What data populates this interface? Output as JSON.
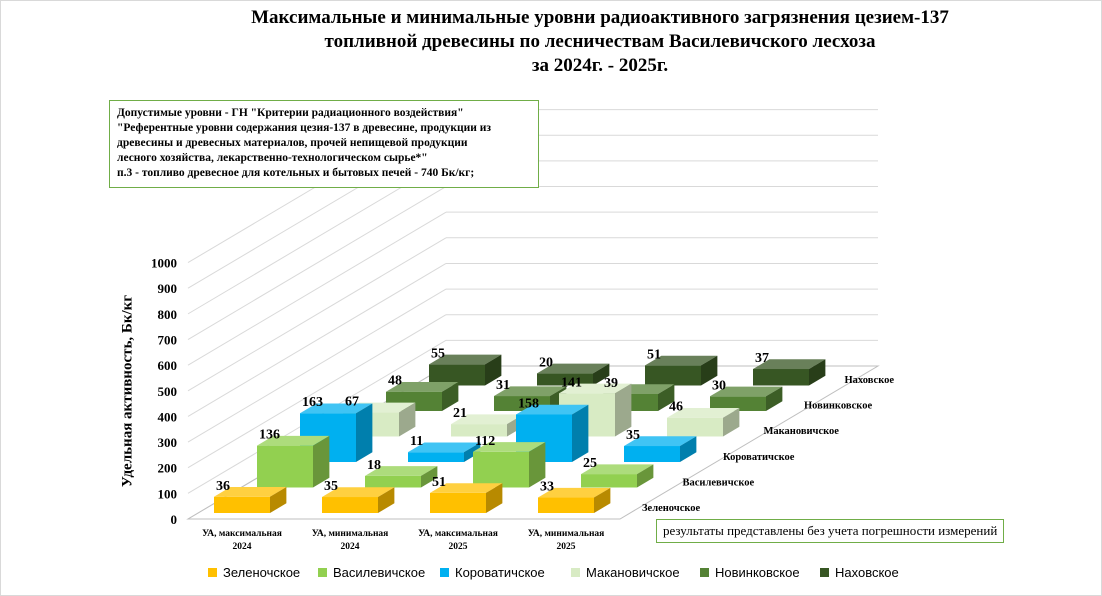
{
  "title_lines": [
    "Максимальные и минимальные уровни радиоактивного загрязнения цезием-137",
    "топливной древесины по лесничествам Василевичского лесхоза",
    "за 2024г. - 2025г."
  ],
  "note_lines": [
    "Допустимые уровни - ГН \"Критерии радиационного воздействия\"",
    "\"Референтные уровни содержания цезия-137 в древесине, продукции из",
    "древесины и древесных материалов, прочей непищевой продукции",
    "лесного хозяйства,  лекарственно-технологическом сырье*\"",
    "п.3 - топливо древесное для котельных и бытовых печей - 740 Бк/кг;"
  ],
  "footnote": "результаты представлены без учета погрешности измерений",
  "chart_data": {
    "type": "bar",
    "subtype": "3d-column",
    "title": "Максимальные и минимальные уровни радиоактивного загрязнения цезием-137 топливной древесины по лесничествам Василевичского лесхоза за 2024г. - 2025г.",
    "ylabel": "Удельная активность, Бк/кг",
    "ylim": [
      0,
      1000
    ],
    "yticks": [
      0,
      100,
      200,
      300,
      400,
      500,
      600,
      700,
      800,
      900,
      1000
    ],
    "categories": [
      [
        "УА, максимальная",
        "2024"
      ],
      [
        "УА, минимальная",
        "2024"
      ],
      [
        "УА, максимальная",
        "2025"
      ],
      [
        "УА, минимальная",
        "2025"
      ]
    ],
    "legend_position": "bottom",
    "series": [
      {
        "name": "Зеленочское",
        "color": "#ffc000",
        "values": [
          36,
          35,
          51,
          33
        ]
      },
      {
        "name": "Василевичское",
        "color": "#92d050",
        "values": [
          136,
          18,
          112,
          25
        ]
      },
      {
        "name": "Короватичское",
        "color": "#00b0f0",
        "values": [
          163,
          11,
          158,
          35
        ]
      },
      {
        "name": "Макановичское",
        "color": "#d8ebc4",
        "values": [
          67,
          21,
          141,
          46
        ]
      },
      {
        "name": "Новинковское",
        "color": "#548235",
        "values": [
          48,
          31,
          39,
          30
        ]
      },
      {
        "name": "Наховское",
        "color": "#375623",
        "values": [
          55,
          20,
          51,
          37
        ]
      }
    ]
  }
}
